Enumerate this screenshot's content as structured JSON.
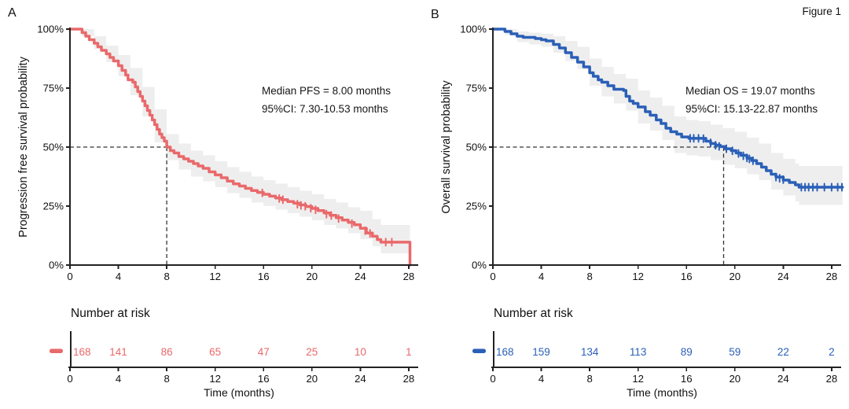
{
  "figure_label": "Figure 1",
  "colors": {
    "pfs_red": "#E9696B",
    "os_blue": "#2A5FB7",
    "ci_band": "rgba(0,0,0,0.065)",
    "axis": "#222222",
    "text": "#111111",
    "median_dash": "#333333"
  },
  "chart_data": [
    {
      "panel": "A",
      "type": "line",
      "variant": "kaplan_meier_step",
      "ylabel": "Progression free survival probability",
      "xlabel": "Time (months)",
      "x_ticks": [
        0,
        4,
        8,
        12,
        16,
        20,
        24,
        28
      ],
      "y_tick_values": [
        0,
        25,
        50,
        75,
        100
      ],
      "y_tick_labels": [
        "0%",
        "25%",
        "50%",
        "75%",
        "100%"
      ],
      "xlim": [
        0,
        28.8
      ],
      "ylim": [
        0,
        100
      ],
      "legend_position": "risk-table-left",
      "grid": false,
      "color": "#E9696B",
      "median_months": 8.0,
      "median_label": "Median PFS = 8.00 months",
      "ci_label": "95%CI: 7.30-10.53 months",
      "risk_table_title": "Number at risk",
      "number_at_risk": [
        168,
        141,
        86,
        65,
        47,
        25,
        10,
        1
      ],
      "curve_pct": [
        [
          0,
          100
        ],
        [
          0.8,
          100
        ],
        [
          1,
          98.5
        ],
        [
          1.3,
          97
        ],
        [
          1.6,
          95.5
        ],
        [
          2,
          94
        ],
        [
          2.3,
          92.5
        ],
        [
          2.6,
          91
        ],
        [
          3,
          89.5
        ],
        [
          3.3,
          88
        ],
        [
          3.6,
          86.5
        ],
        [
          4,
          84.5
        ],
        [
          4.3,
          82.5
        ],
        [
          4.6,
          80.5
        ],
        [
          4.8,
          78.5
        ],
        [
          5.2,
          77.5
        ],
        [
          5.4,
          75.5
        ],
        [
          5.6,
          73.5
        ],
        [
          5.8,
          71.5
        ],
        [
          6,
          69.5
        ],
        [
          6.2,
          67.5
        ],
        [
          6.4,
          65.5
        ],
        [
          6.6,
          63.5
        ],
        [
          6.8,
          61.5
        ],
        [
          7,
          59.5
        ],
        [
          7.2,
          57.5
        ],
        [
          7.4,
          55.5
        ],
        [
          7.6,
          54
        ],
        [
          7.8,
          52.5
        ],
        [
          8,
          50
        ],
        [
          8.3,
          48.5
        ],
        [
          8.6,
          47.5
        ],
        [
          9,
          46
        ],
        [
          9.4,
          45
        ],
        [
          9.8,
          44
        ],
        [
          10.2,
          43
        ],
        [
          10.6,
          42
        ],
        [
          11,
          41
        ],
        [
          11.5,
          39.5
        ],
        [
          12,
          38.2
        ],
        [
          12.5,
          37
        ],
        [
          13,
          35.6
        ],
        [
          13.5,
          34.4
        ],
        [
          14,
          33.5
        ],
        [
          14.5,
          32.5
        ],
        [
          15,
          31.6
        ],
        [
          15.5,
          30.8
        ],
        [
          16,
          30
        ],
        [
          16.5,
          29.2
        ],
        [
          17,
          28.4
        ],
        [
          17.5,
          27.7
        ],
        [
          18,
          26.9
        ],
        [
          18.5,
          26.2
        ],
        [
          19,
          25.5
        ],
        [
          19.5,
          24.8
        ],
        [
          20,
          24
        ],
        [
          20.5,
          23.1
        ],
        [
          21,
          22.1
        ],
        [
          21.5,
          21.1
        ],
        [
          22,
          20.1
        ],
        [
          22.5,
          19.1
        ],
        [
          23,
          18.1
        ],
        [
          23.5,
          17.1
        ],
        [
          24,
          15.6
        ],
        [
          24.5,
          13.6
        ],
        [
          25,
          12.2
        ],
        [
          25.4,
          10.8
        ],
        [
          25.7,
          9.7
        ],
        [
          28.1,
          9.7
        ],
        [
          28.1,
          0
        ]
      ],
      "ci_upper_pct": [
        [
          0,
          100
        ],
        [
          1,
          100
        ],
        [
          2,
          97
        ],
        [
          3,
          93
        ],
        [
          4,
          89
        ],
        [
          5,
          83.5
        ],
        [
          6,
          75.5
        ],
        [
          7,
          66
        ],
        [
          8,
          55.5
        ],
        [
          9,
          51.5
        ],
        [
          10,
          48.5
        ],
        [
          11,
          46.5
        ],
        [
          12,
          44
        ],
        [
          13,
          41.5
        ],
        [
          14,
          39.5
        ],
        [
          15,
          37.5
        ],
        [
          16,
          36
        ],
        [
          17,
          34.5
        ],
        [
          18,
          33
        ],
        [
          19,
          31.5
        ],
        [
          20,
          30
        ],
        [
          21,
          28
        ],
        [
          22,
          26.5
        ],
        [
          23,
          24.5
        ],
        [
          24,
          23
        ],
        [
          25,
          19.5
        ],
        [
          25.7,
          17
        ],
        [
          28.1,
          17
        ]
      ],
      "ci_lower_pct": [
        [
          0,
          100
        ],
        [
          1,
          97
        ],
        [
          2,
          91.5
        ],
        [
          3,
          86
        ],
        [
          4,
          80
        ],
        [
          5,
          72
        ],
        [
          6,
          63
        ],
        [
          7,
          52
        ],
        [
          8,
          44.5
        ],
        [
          9,
          40.5
        ],
        [
          10,
          37.5
        ],
        [
          11,
          35.5
        ],
        [
          12,
          33
        ],
        [
          13,
          30.5
        ],
        [
          14,
          28.5
        ],
        [
          15,
          26.5
        ],
        [
          16,
          25
        ],
        [
          17,
          23.5
        ],
        [
          18,
          22
        ],
        [
          19,
          20.5
        ],
        [
          20,
          19
        ],
        [
          21,
          17
        ],
        [
          22,
          15.5
        ],
        [
          23,
          13.5
        ],
        [
          24,
          11
        ],
        [
          25,
          8
        ],
        [
          25.7,
          5
        ],
        [
          28.1,
          5
        ]
      ],
      "censor_marks_pct": [
        [
          15.9,
          30.6
        ],
        [
          17.3,
          28.2
        ],
        [
          17.6,
          27.7
        ],
        [
          18.8,
          25.8
        ],
        [
          19.1,
          25.3
        ],
        [
          19.45,
          24.9
        ],
        [
          19.9,
          24.1
        ],
        [
          20.3,
          23.4
        ],
        [
          21.2,
          21.6
        ],
        [
          21.6,
          21
        ],
        [
          22.2,
          19.7
        ],
        [
          23.3,
          17.6
        ],
        [
          24.4,
          14.6
        ],
        [
          24.8,
          13.4
        ],
        [
          26.1,
          9.7
        ],
        [
          26.6,
          9.7
        ]
      ]
    },
    {
      "panel": "B",
      "type": "line",
      "variant": "kaplan_meier_step",
      "ylabel": "Overall survival probability",
      "xlabel": "Time (months)",
      "x_ticks": [
        0,
        4,
        8,
        12,
        16,
        20,
        24,
        28
      ],
      "y_tick_values": [
        0,
        25,
        50,
        75,
        100
      ],
      "y_tick_labels": [
        "0%",
        "25%",
        "50%",
        "75%",
        "100%"
      ],
      "xlim": [
        0,
        28.9
      ],
      "ylim": [
        0,
        100
      ],
      "legend_position": "risk-table-left",
      "grid": false,
      "color": "#2A5FB7",
      "median_months": 19.07,
      "median_label": "Median OS = 19.07 months",
      "ci_label": "95%CI: 15.13-22.87 months",
      "risk_table_title": "Number at risk",
      "number_at_risk": [
        168,
        159,
        134,
        113,
        89,
        59,
        22,
        2
      ],
      "curve_pct": [
        [
          0,
          100
        ],
        [
          0.8,
          100
        ],
        [
          1,
          99
        ],
        [
          1.5,
          98
        ],
        [
          2,
          97
        ],
        [
          2.5,
          96.5
        ],
        [
          3.5,
          96
        ],
        [
          4,
          95.5
        ],
        [
          4.4,
          95
        ],
        [
          5,
          93.5
        ],
        [
          5.5,
          92
        ],
        [
          6,
          90
        ],
        [
          6.5,
          88
        ],
        [
          7,
          86
        ],
        [
          7.5,
          84
        ],
        [
          8,
          81.5
        ],
        [
          8.3,
          80
        ],
        [
          8.7,
          78.5
        ],
        [
          9,
          77.5
        ],
        [
          9.5,
          76
        ],
        [
          10,
          74.5
        ],
        [
          10.8,
          74
        ],
        [
          11,
          71.5
        ],
        [
          11.3,
          69.5
        ],
        [
          11.6,
          68.5
        ],
        [
          12,
          67
        ],
        [
          12.6,
          65
        ],
        [
          13,
          63.5
        ],
        [
          13.5,
          61.5
        ],
        [
          13.9,
          60
        ],
        [
          14.3,
          58
        ],
        [
          14.7,
          56.5
        ],
        [
          15.2,
          55.5
        ],
        [
          15.6,
          54.3
        ],
        [
          16.2,
          53.7
        ],
        [
          17.6,
          52.5
        ],
        [
          18,
          51.5
        ],
        [
          18.4,
          50.8
        ],
        [
          18.8,
          50.2
        ],
        [
          19.2,
          49.3
        ],
        [
          19.7,
          48.5
        ],
        [
          20.1,
          47.5
        ],
        [
          20.5,
          46.5
        ],
        [
          21,
          45.3
        ],
        [
          21.4,
          44.3
        ],
        [
          21.8,
          43
        ],
        [
          22.2,
          41.5
        ],
        [
          22.6,
          40
        ],
        [
          23,
          38.5
        ],
        [
          23.4,
          37.3
        ],
        [
          24,
          36
        ],
        [
          24.5,
          35
        ],
        [
          25,
          34
        ],
        [
          25.3,
          33
        ],
        [
          28.9,
          33
        ]
      ],
      "ci_upper_pct": [
        [
          0,
          100
        ],
        [
          1,
          100
        ],
        [
          2,
          99
        ],
        [
          3,
          98.5
        ],
        [
          4,
          98
        ],
        [
          5,
          97
        ],
        [
          6,
          95
        ],
        [
          7,
          92.5
        ],
        [
          8,
          87.5
        ],
        [
          9,
          84
        ],
        [
          10,
          81
        ],
        [
          11,
          79
        ],
        [
          12,
          74
        ],
        [
          13,
          71
        ],
        [
          14,
          67.5
        ],
        [
          15,
          63
        ],
        [
          16,
          61.5
        ],
        [
          17,
          61
        ],
        [
          18,
          59.5
        ],
        [
          19,
          58
        ],
        [
          20,
          56.5
        ],
        [
          21,
          54
        ],
        [
          22,
          51.5
        ],
        [
          23,
          47.5
        ],
        [
          24,
          45
        ],
        [
          25,
          43
        ],
        [
          25.3,
          42
        ],
        [
          28.9,
          42
        ]
      ],
      "ci_lower_pct": [
        [
          0,
          100
        ],
        [
          1,
          97.5
        ],
        [
          2,
          94.5
        ],
        [
          3,
          93.5
        ],
        [
          4,
          92.5
        ],
        [
          5,
          90
        ],
        [
          6,
          86.5
        ],
        [
          7,
          83
        ],
        [
          8,
          76
        ],
        [
          9,
          71.5
        ],
        [
          10,
          68.5
        ],
        [
          11,
          65.5
        ],
        [
          12,
          60
        ],
        [
          13,
          57
        ],
        [
          14,
          53
        ],
        [
          15,
          47.5
        ],
        [
          16,
          46.5
        ],
        [
          17,
          46
        ],
        [
          18,
          44.5
        ],
        [
          19,
          42.5
        ],
        [
          20,
          41
        ],
        [
          21,
          38.5
        ],
        [
          22,
          36
        ],
        [
          23,
          32
        ],
        [
          24,
          29.5
        ],
        [
          25,
          27
        ],
        [
          25.3,
          25.5
        ],
        [
          28.9,
          25.5
        ]
      ],
      "censor_marks_pct": [
        [
          16.3,
          53.7
        ],
        [
          16.6,
          53.7
        ],
        [
          17,
          53.7
        ],
        [
          17.4,
          53.6
        ],
        [
          18,
          51.8
        ],
        [
          18.4,
          50.8
        ],
        [
          18.7,
          50.3
        ],
        [
          19.3,
          49.3
        ],
        [
          19.8,
          48.4
        ],
        [
          20.3,
          47.3
        ],
        [
          20.7,
          46.3
        ],
        [
          21,
          45.4
        ],
        [
          21.2,
          45
        ],
        [
          21.5,
          44.2
        ],
        [
          23.4,
          37.3
        ],
        [
          23.7,
          36.8
        ],
        [
          24,
          36.2
        ],
        [
          25.5,
          33
        ],
        [
          25.8,
          33
        ],
        [
          26.1,
          33
        ],
        [
          26.45,
          33
        ],
        [
          26.8,
          33
        ],
        [
          27.4,
          33
        ],
        [
          28,
          33
        ],
        [
          28.5,
          33
        ],
        [
          28.85,
          33
        ]
      ]
    }
  ]
}
